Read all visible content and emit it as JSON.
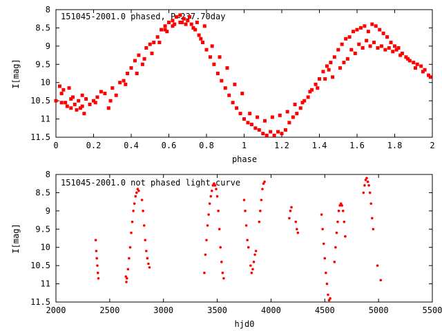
{
  "chart_data": [
    {
      "type": "scatter",
      "title": "151045-2001.0 phased, P=237.70day",
      "xlabel": "phase",
      "ylabel": "I[mag]",
      "xlim": [
        0,
        2
      ],
      "ylim": [
        11.5,
        8
      ],
      "y_inverted": true,
      "x_ticks": [
        "0",
        "0.2",
        "0.4",
        "0.6",
        "0.8",
        "1",
        "1.2",
        "1.4",
        "1.6",
        "1.8",
        "2"
      ],
      "y_ticks": [
        "8",
        "8.5",
        "9",
        "9.5",
        "10",
        "10.5",
        "11",
        "11.5"
      ],
      "marker": "filled-square",
      "color": "#ff0000",
      "points": [
        [
          0.0,
          10.5
        ],
        [
          0.02,
          10.1
        ],
        [
          0.03,
          10.3
        ],
        [
          0.04,
          10.2
        ],
        [
          0.05,
          10.55
        ],
        [
          0.06,
          10.65
        ],
        [
          0.07,
          10.15
        ],
        [
          0.08,
          10.7
        ],
        [
          0.09,
          10.4
        ],
        [
          0.1,
          10.6
        ],
        [
          0.11,
          10.75
        ],
        [
          0.12,
          10.5
        ],
        [
          0.13,
          10.7
        ],
        [
          0.14,
          10.35
        ],
        [
          0.15,
          10.85
        ],
        [
          0.16,
          10.45
        ],
        [
          0.18,
          10.6
        ],
        [
          0.2,
          10.5
        ],
        [
          0.22,
          10.4
        ],
        [
          0.24,
          10.25
        ],
        [
          0.26,
          10.3
        ],
        [
          0.28,
          10.7
        ],
        [
          0.3,
          10.15
        ],
        [
          0.32,
          10.35
        ],
        [
          0.34,
          10.0
        ],
        [
          0.36,
          9.95
        ],
        [
          0.38,
          9.75
        ],
        [
          0.4,
          9.6
        ],
        [
          0.42,
          9.4
        ],
        [
          0.44,
          9.25
        ],
        [
          0.46,
          9.5
        ],
        [
          0.48,
          9.05
        ],
        [
          0.5,
          8.95
        ],
        [
          0.52,
          8.9
        ],
        [
          0.54,
          8.75
        ],
        [
          0.56,
          8.55
        ],
        [
          0.58,
          8.45
        ],
        [
          0.6,
          8.35
        ],
        [
          0.62,
          8.3
        ],
        [
          0.64,
          8.2
        ],
        [
          0.66,
          8.15
        ],
        [
          0.68,
          8.25
        ],
        [
          0.7,
          8.3
        ],
        [
          0.72,
          8.4
        ],
        [
          0.74,
          8.55
        ],
        [
          0.76,
          8.7
        ],
        [
          0.78,
          8.9
        ],
        [
          0.8,
          9.1
        ],
        [
          0.82,
          9.3
        ],
        [
          0.84,
          9.5
        ],
        [
          0.86,
          9.75
        ],
        [
          0.88,
          9.95
        ],
        [
          0.9,
          10.15
        ],
        [
          0.92,
          10.35
        ],
        [
          0.94,
          10.55
        ],
        [
          0.96,
          10.7
        ],
        [
          0.98,
          10.85
        ],
        [
          1.0,
          11.0
        ],
        [
          1.02,
          11.1
        ],
        [
          1.04,
          11.15
        ],
        [
          1.06,
          11.25
        ],
        [
          1.08,
          11.3
        ],
        [
          1.1,
          11.4
        ],
        [
          1.12,
          11.45
        ],
        [
          1.14,
          11.35
        ],
        [
          1.16,
          11.45
        ],
        [
          1.18,
          11.35
        ],
        [
          1.2,
          11.4
        ],
        [
          1.22,
          11.3
        ],
        [
          1.24,
          11.1
        ],
        [
          1.26,
          10.95
        ],
        [
          1.28,
          10.85
        ],
        [
          1.3,
          10.7
        ],
        [
          1.32,
          10.5
        ],
        [
          1.34,
          10.4
        ],
        [
          1.36,
          10.2
        ],
        [
          1.38,
          10.05
        ],
        [
          1.4,
          9.9
        ],
        [
          1.42,
          9.7
        ],
        [
          1.44,
          9.55
        ],
        [
          1.46,
          9.45
        ],
        [
          1.48,
          9.3
        ],
        [
          1.5,
          9.1
        ],
        [
          1.52,
          8.95
        ],
        [
          1.54,
          8.8
        ],
        [
          1.56,
          8.75
        ],
        [
          1.58,
          8.6
        ],
        [
          1.6,
          8.55
        ],
        [
          1.62,
          8.5
        ],
        [
          1.64,
          8.45
        ],
        [
          1.66,
          8.6
        ],
        [
          1.68,
          8.4
        ],
        [
          1.7,
          8.45
        ],
        [
          1.72,
          8.55
        ],
        [
          1.74,
          8.65
        ],
        [
          1.76,
          8.75
        ],
        [
          1.78,
          8.9
        ],
        [
          1.8,
          9.0
        ],
        [
          1.82,
          9.05
        ],
        [
          1.84,
          9.2
        ],
        [
          1.86,
          9.3
        ],
        [
          1.88,
          9.4
        ],
        [
          1.9,
          9.45
        ],
        [
          1.92,
          9.5
        ],
        [
          1.94,
          9.55
        ],
        [
          1.96,
          9.65
        ],
        [
          1.98,
          9.8
        ],
        [
          0.03,
          10.55
        ],
        [
          0.08,
          10.45
        ],
        [
          0.14,
          10.65
        ],
        [
          0.21,
          10.55
        ],
        [
          0.29,
          10.5
        ],
        [
          0.37,
          10.05
        ],
        [
          0.43,
          9.75
        ],
        [
          0.47,
          9.35
        ],
        [
          0.51,
          9.2
        ],
        [
          0.55,
          8.9
        ],
        [
          0.59,
          8.6
        ],
        [
          0.63,
          8.4
        ],
        [
          0.67,
          8.35
        ],
        [
          0.71,
          8.2
        ],
        [
          0.75,
          8.35
        ],
        [
          0.79,
          8.45
        ],
        [
          0.83,
          9.0
        ],
        [
          0.87,
          9.3
        ],
        [
          0.91,
          9.6
        ],
        [
          0.95,
          10.05
        ],
        [
          0.99,
          10.3
        ],
        [
          1.03,
          10.85
        ],
        [
          1.07,
          10.95
        ],
        [
          1.11,
          11.05
        ],
        [
          1.15,
          10.95
        ],
        [
          1.19,
          10.9
        ],
        [
          1.23,
          10.8
        ],
        [
          1.27,
          10.6
        ],
        [
          1.31,
          10.55
        ],
        [
          1.35,
          10.25
        ],
        [
          1.39,
          10.15
        ],
        [
          1.43,
          9.9
        ],
        [
          1.47,
          9.85
        ],
        [
          1.51,
          9.6
        ],
        [
          1.55,
          9.35
        ],
        [
          1.59,
          9.2
        ],
        [
          1.63,
          9.05
        ],
        [
          1.67,
          9.0
        ],
        [
          1.71,
          9.05
        ],
        [
          1.75,
          9.1
        ],
        [
          1.79,
          9.15
        ],
        [
          1.83,
          9.25
        ],
        [
          1.87,
          9.35
        ],
        [
          1.91,
          9.6
        ],
        [
          1.95,
          9.7
        ],
        [
          1.99,
          9.85
        ],
        [
          0.58,
          8.55
        ],
        [
          0.62,
          8.45
        ],
        [
          0.66,
          8.35
        ],
        [
          0.69,
          8.4
        ],
        [
          0.73,
          8.5
        ],
        [
          0.77,
          8.8
        ],
        [
          1.45,
          9.65
        ],
        [
          1.53,
          9.45
        ],
        [
          1.57,
          9.1
        ],
        [
          1.61,
          8.95
        ],
        [
          1.65,
          8.85
        ],
        [
          1.69,
          8.9
        ],
        [
          1.73,
          9.0
        ],
        [
          1.77,
          9.05
        ],
        [
          1.81,
          9.1
        ]
      ]
    },
    {
      "type": "scatter",
      "title": "151045-2001.0 not phased light curve",
      "xlabel": "hjd0",
      "ylabel": "I[mag]",
      "xlim": [
        2000,
        5500
      ],
      "ylim": [
        11.5,
        8
      ],
      "y_inverted": true,
      "x_ticks": [
        "2000",
        "2500",
        "3000",
        "3500",
        "4000",
        "4500",
        "5000",
        "5500"
      ],
      "y_ticks": [
        "8",
        "8.5",
        "9",
        "9.5",
        "10",
        "10.5",
        "11",
        "11.5"
      ],
      "marker": "dot",
      "color": "#ff0000",
      "points": [
        [
          2370,
          9.8
        ],
        [
          2375,
          10.1
        ],
        [
          2380,
          10.3
        ],
        [
          2385,
          10.5
        ],
        [
          2390,
          10.7
        ],
        [
          2395,
          10.85
        ],
        [
          2650,
          10.8
        ],
        [
          2655,
          10.95
        ],
        [
          2660,
          10.85
        ],
        [
          2670,
          10.6
        ],
        [
          2680,
          10.3
        ],
        [
          2690,
          10.0
        ],
        [
          2700,
          9.6
        ],
        [
          2710,
          9.3
        ],
        [
          2720,
          9.0
        ],
        [
          2730,
          8.8
        ],
        [
          2740,
          8.6
        ],
        [
          2750,
          8.5
        ],
        [
          2760,
          8.4
        ],
        [
          2770,
          8.45
        ],
        [
          2800,
          8.7
        ],
        [
          2810,
          9.0
        ],
        [
          2820,
          9.4
        ],
        [
          2830,
          9.8
        ],
        [
          2840,
          10.1
        ],
        [
          2850,
          10.3
        ],
        [
          2860,
          10.45
        ],
        [
          2870,
          10.55
        ],
        [
          3380,
          10.7
        ],
        [
          3390,
          10.2
        ],
        [
          3400,
          9.8
        ],
        [
          3410,
          9.4
        ],
        [
          3420,
          9.1
        ],
        [
          3430,
          8.8
        ],
        [
          3440,
          8.6
        ],
        [
          3450,
          8.45
        ],
        [
          3460,
          8.3
        ],
        [
          3470,
          8.25
        ],
        [
          3480,
          8.3
        ],
        [
          3490,
          8.4
        ],
        [
          3500,
          8.6
        ],
        [
          3510,
          9.0
        ],
        [
          3520,
          9.5
        ],
        [
          3530,
          10.0
        ],
        [
          3540,
          10.4
        ],
        [
          3550,
          10.7
        ],
        [
          3560,
          10.85
        ],
        [
          3750,
          8.7
        ],
        [
          3760,
          9.0
        ],
        [
          3770,
          9.4
        ],
        [
          3780,
          9.8
        ],
        [
          3790,
          10.0
        ],
        [
          3810,
          10.5
        ],
        [
          3820,
          10.7
        ],
        [
          3830,
          10.6
        ],
        [
          3840,
          10.4
        ],
        [
          3850,
          10.2
        ],
        [
          3860,
          10.1
        ],
        [
          3890,
          9.3
        ],
        [
          3900,
          9.0
        ],
        [
          3910,
          8.7
        ],
        [
          3920,
          8.4
        ],
        [
          3930,
          8.25
        ],
        [
          3940,
          8.2
        ],
        [
          4170,
          9.2
        ],
        [
          4180,
          9.0
        ],
        [
          4190,
          8.9
        ],
        [
          4230,
          9.3
        ],
        [
          4240,
          9.5
        ],
        [
          4250,
          9.6
        ],
        [
          4470,
          9.1
        ],
        [
          4480,
          9.5
        ],
        [
          4490,
          9.9
        ],
        [
          4500,
          10.3
        ],
        [
          4510,
          10.7
        ],
        [
          4520,
          11.0
        ],
        [
          4530,
          11.3
        ],
        [
          4540,
          11.45
        ],
        [
          4550,
          11.4
        ],
        [
          4590,
          10.4
        ],
        [
          4600,
          10.0
        ],
        [
          4610,
          9.6
        ],
        [
          4620,
          9.3
        ],
        [
          4630,
          9.0
        ],
        [
          4640,
          8.85
        ],
        [
          4650,
          8.8
        ],
        [
          4660,
          8.85
        ],
        [
          4670,
          9.0
        ],
        [
          4680,
          9.3
        ],
        [
          4690,
          9.7
        ],
        [
          4860,
          8.5
        ],
        [
          4870,
          8.3
        ],
        [
          4880,
          8.15
        ],
        [
          4890,
          8.1
        ],
        [
          4900,
          8.2
        ],
        [
          4910,
          8.3
        ],
        [
          4920,
          8.5
        ],
        [
          4930,
          8.8
        ],
        [
          4940,
          9.2
        ],
        [
          4950,
          9.5
        ],
        [
          4990,
          10.5
        ],
        [
          5020,
          10.9
        ]
      ]
    }
  ]
}
